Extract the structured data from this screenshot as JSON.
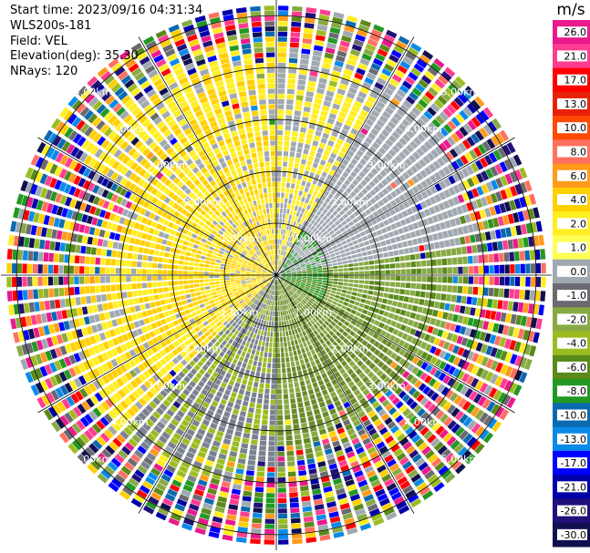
{
  "header": {
    "start_time": "Start time: 2023/09/16 04:31:34",
    "instrument": "WLS200s-181",
    "field": "Field: VEL",
    "elevation": "Elevation(deg): 35.30",
    "nrays": "NRays: 120"
  },
  "chart_data": {
    "type": "ppi",
    "field": "VEL",
    "unit_label": "m/s",
    "nrays": 120,
    "range_rings_km": [
      1.0,
      2.0,
      3.0,
      4.0,
      5.0
    ],
    "ring_labels": [
      "1.00km",
      "2.00km",
      "3.00km",
      "4.00km",
      "5.00km"
    ],
    "spoke_angles_deg": [
      0,
      30,
      60,
      90,
      120,
      150,
      180,
      210,
      240,
      270,
      300,
      330
    ],
    "max_range_km": 5.3,
    "colorbar": {
      "ticks": [
        "26.0",
        "21.0",
        "17.0",
        "13.0",
        "10.0",
        "8.0",
        "6.0",
        "4.0",
        "2.0",
        "1.0",
        "0.0",
        "-1.0",
        "-2.0",
        "-4.0",
        "-6.0",
        "-8.0",
        "-10.0",
        "-13.0",
        "-17.0",
        "-21.0",
        "-26.0",
        "-30.0"
      ],
      "colors": [
        "#e81a8c",
        "#ff3d90",
        "#ff0000",
        "#e8220a",
        "#ff4a00",
        "#ff7060",
        "#ff9a1a",
        "#ffd000",
        "#ffee22",
        "#ffff55",
        "#a0a8b0",
        "#6a6a70",
        "#88aa44",
        "#9cbd22",
        "#5a8a1a",
        "#229922",
        "#0a6ab0",
        "#0a8ae8",
        "#0000ff",
        "#0000a8",
        "#201078",
        "#101050"
      ]
    }
  }
}
